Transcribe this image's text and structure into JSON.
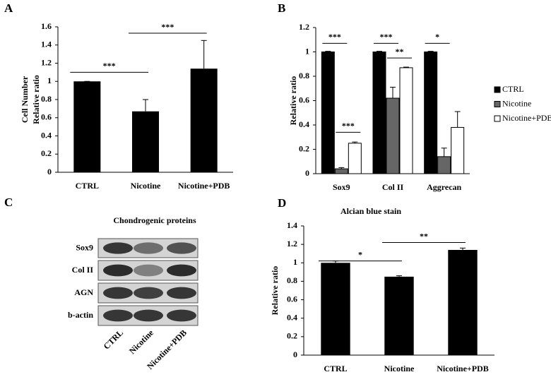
{
  "chart_data": [
    {
      "type": "bar",
      "panel_label": "A",
      "ylabel": [
        "Cell Number",
        "Relative ratio"
      ],
      "categories": [
        "CTRL",
        "Nicotine",
        "Nicotine+PDB"
      ],
      "values": [
        1,
        0.67,
        1.14
      ],
      "errors": [
        0,
        0.13,
        0.31
      ],
      "color": "#000000",
      "ylim": [
        0,
        1.6
      ],
      "yticks": [
        0,
        0.2,
        0.4,
        0.6,
        0.8,
        1,
        1.2,
        1.4,
        1.6
      ],
      "brackets": [
        {
          "label": "***",
          "between": [
            0,
            1
          ],
          "y": 1.1
        },
        {
          "label": "***",
          "between": [
            1,
            2
          ],
          "y": 1.53
        }
      ]
    },
    {
      "type": "grouped_bar",
      "panel_label": "B",
      "ylabel": "Relative ratio",
      "categories": [
        "Sox9",
        "Col II",
        "Aggrecan"
      ],
      "series": [
        {
          "name": "CTRL",
          "color": "#000000",
          "values": [
            1,
            1,
            1
          ],
          "errors": [
            0.005,
            0.005,
            0.005
          ]
        },
        {
          "name": "Nicotine",
          "color": "#666666",
          "values": [
            0.04,
            0.62,
            0.14
          ],
          "errors": [
            0.01,
            0.09,
            0.07
          ]
        },
        {
          "name": "Nicotine+PDB",
          "color": "#ffffff",
          "values": [
            0.25,
            0.87,
            0.38
          ],
          "errors": [
            0.01,
            0.005,
            0.13
          ]
        }
      ],
      "ylim": [
        0,
        1.2
      ],
      "yticks": [
        0,
        0.2,
        0.4,
        0.6,
        0.8,
        1,
        1.2
      ],
      "legend": "right",
      "brackets": [
        {
          "label": "***",
          "category": 0,
          "between": [
            0,
            1
          ],
          "y": 1.07
        },
        {
          "label": "***",
          "category": 0,
          "between": [
            1,
            2
          ],
          "y": 0.34
        },
        {
          "label": "***",
          "category": 1,
          "between": [
            0,
            1
          ],
          "y": 1.07
        },
        {
          "label": "**",
          "category": 1,
          "between": [
            1,
            2
          ],
          "y": 0.95
        },
        {
          "label": "*",
          "category": 2,
          "between": [
            0,
            1
          ],
          "y": 1.07
        }
      ]
    },
    {
      "type": "bar",
      "panel_label": "D",
      "title": "Alcian blue stain",
      "ylabel": "Relative ratio",
      "categories": [
        "CTRL",
        "Nicotine",
        "Nicotine+PDB"
      ],
      "values": [
        1,
        0.85,
        1.14
      ],
      "errors": [
        0.02,
        0.01,
        0.02
      ],
      "color": "#000000",
      "ylim": [
        0,
        1.4
      ],
      "yticks": [
        0,
        0.2,
        0.4,
        0.6,
        0.8,
        1,
        1.2,
        1.4
      ],
      "brackets": [
        {
          "label": "*",
          "between": [
            0,
            1
          ],
          "y": 1.02
        },
        {
          "label": "**",
          "between": [
            1,
            2
          ],
          "y": 1.22
        }
      ]
    }
  ],
  "blot": {
    "panel_label": "C",
    "title": "Chondrogenic proteins",
    "rows": [
      "Sox9",
      "Col II",
      "AGN",
      "b-actin"
    ],
    "lanes": [
      "CTRL",
      "Nicotine",
      "Nicotine+PDB"
    ]
  }
}
